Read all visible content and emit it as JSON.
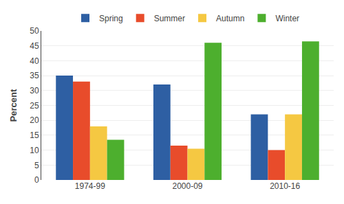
{
  "chart_data": {
    "type": "bar",
    "ylabel": "Percent",
    "categories": [
      "1974-99",
      "2000-09",
      "2010-16"
    ],
    "series": [
      {
        "name": "Spring",
        "color": "#2E5FA3",
        "values": [
          35,
          32,
          22
        ]
      },
      {
        "name": "Summer",
        "color": "#E84C2B",
        "values": [
          33,
          11.5,
          10
        ]
      },
      {
        "name": "Autumn",
        "color": "#F5C842",
        "values": [
          18,
          10.5,
          22
        ]
      },
      {
        "name": "Winter",
        "color": "#4DAF2E",
        "values": [
          13.5,
          46,
          46.5
        ]
      }
    ],
    "ylim": [
      0,
      50
    ],
    "yticks": [
      0,
      5,
      10,
      15,
      20,
      25,
      30,
      35,
      40,
      45,
      50
    ],
    "grid": true,
    "legend": "top"
  }
}
